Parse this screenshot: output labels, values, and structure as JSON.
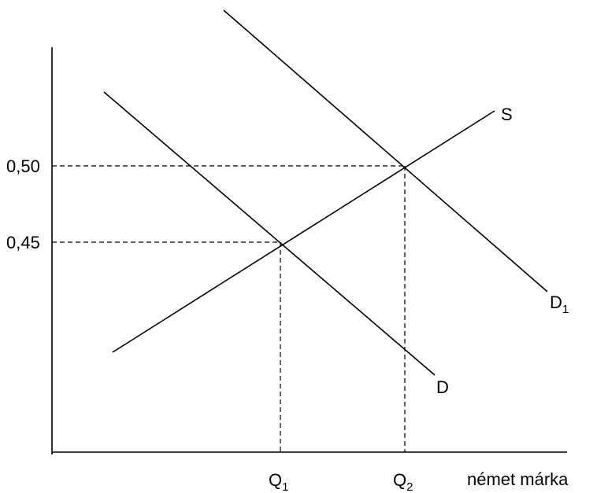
{
  "y_ticks": [
    {
      "key": "p1",
      "label": "0,50"
    },
    {
      "key": "p2",
      "label": "0,45"
    }
  ],
  "x_ticks": [
    {
      "key": "q1",
      "label": "Q",
      "sub": "1"
    },
    {
      "key": "q2",
      "label": "Q",
      "sub": "2"
    }
  ],
  "x_axis_label": "német márka",
  "curves": [
    {
      "key": "s",
      "label": "S",
      "sub": ""
    },
    {
      "key": "d",
      "label": "D",
      "sub": ""
    },
    {
      "key": "d1",
      "label": "D",
      "sub": "1"
    }
  ]
}
